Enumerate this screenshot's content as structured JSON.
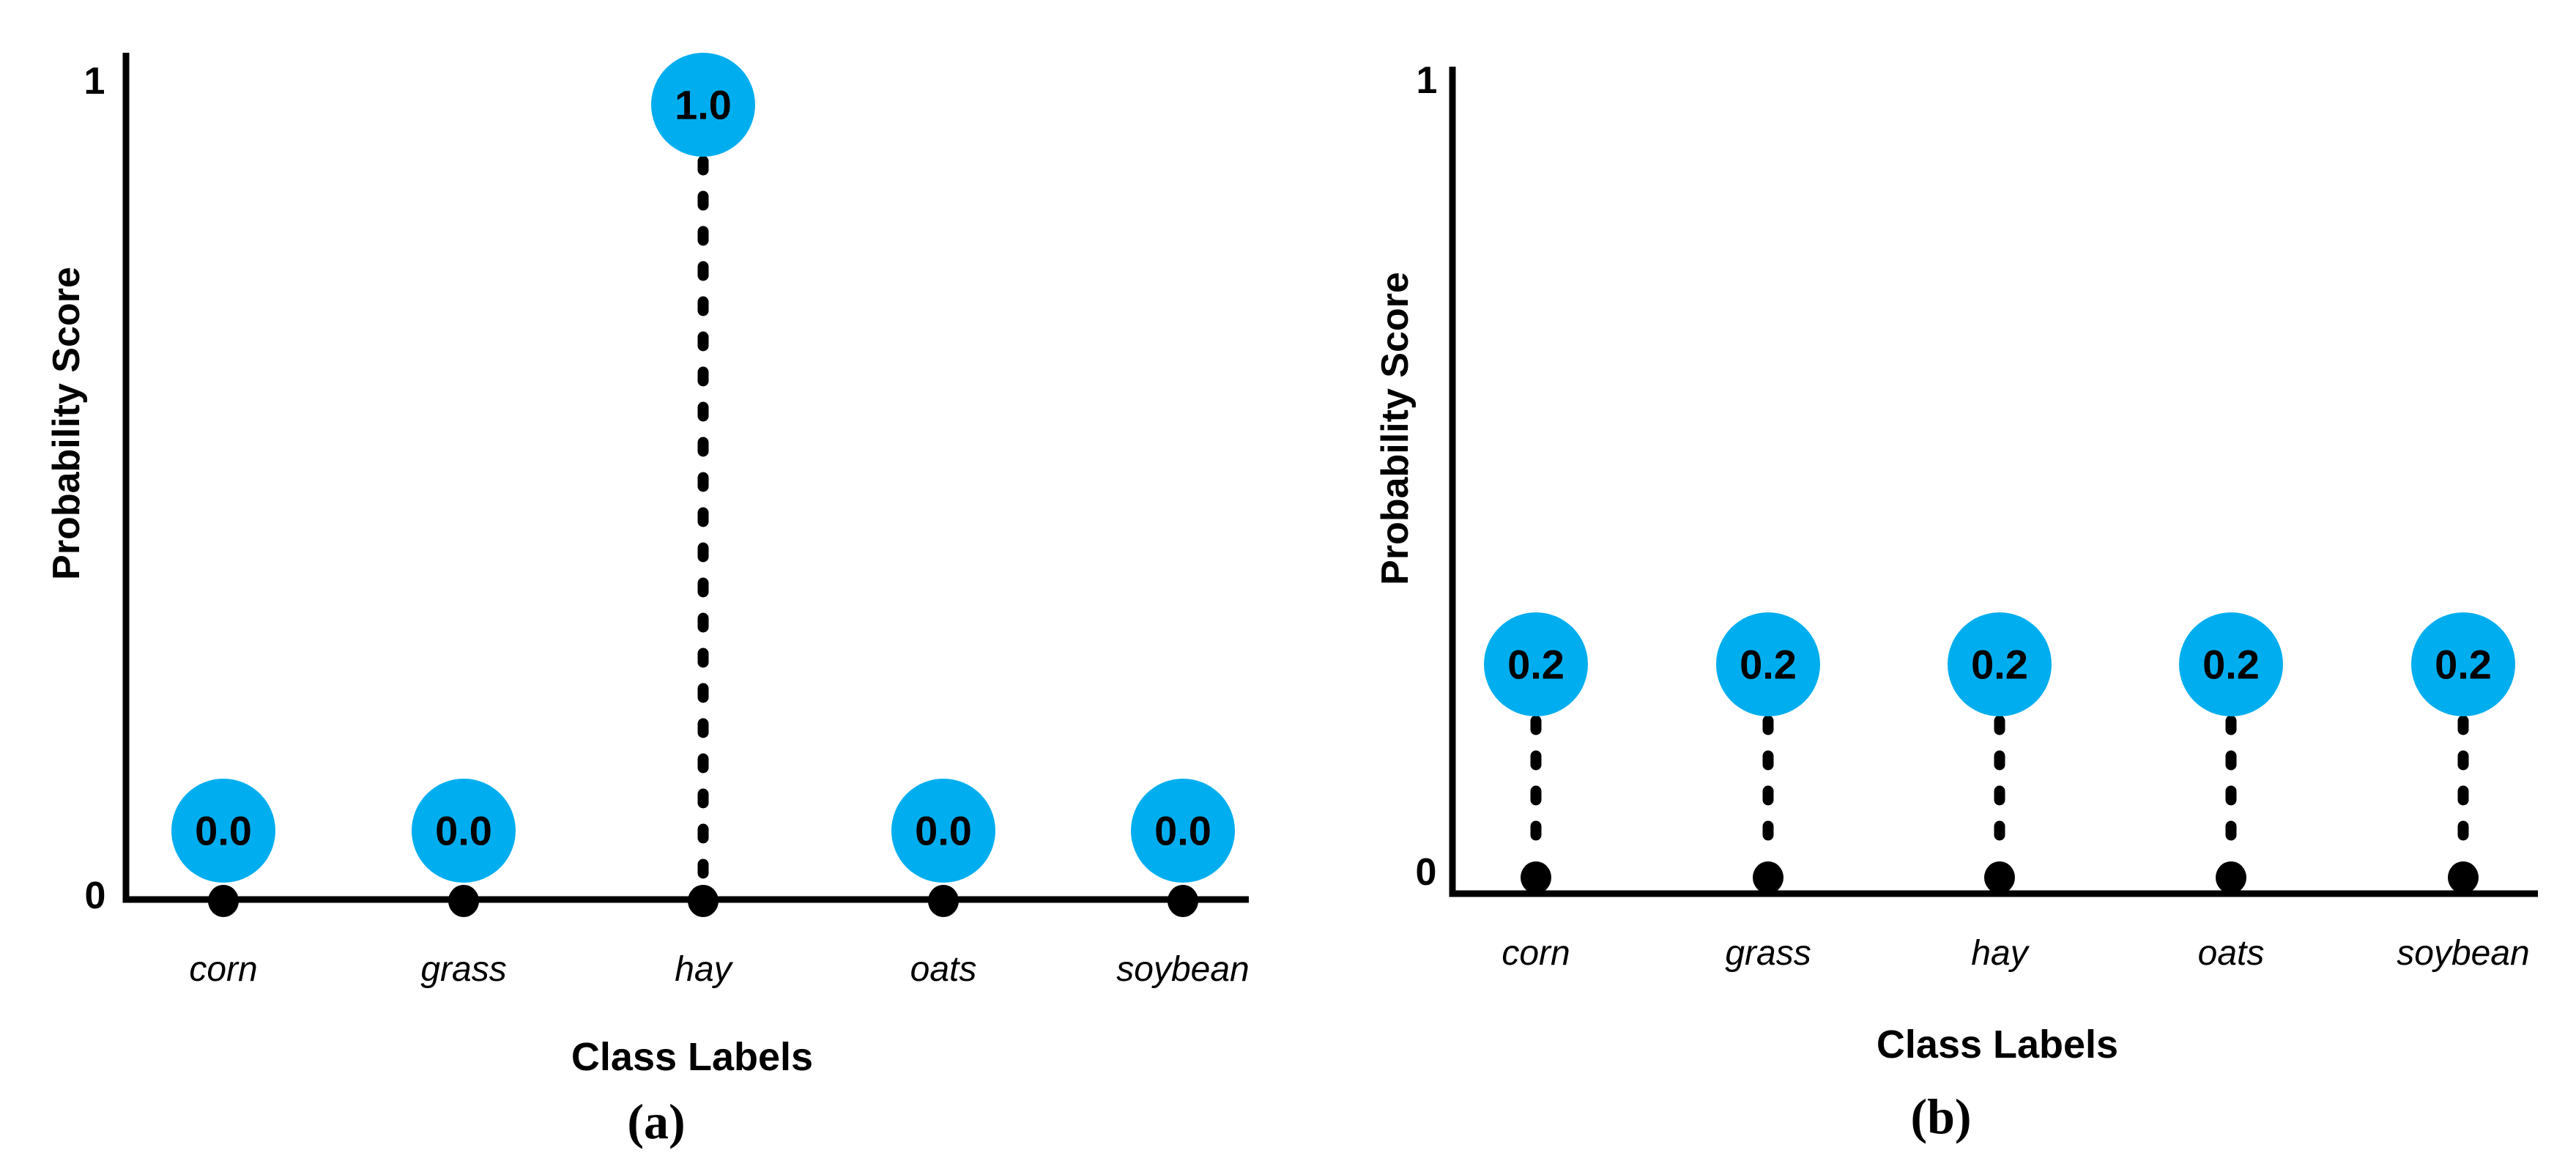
{
  "colors": {
    "bubble_fill": "#00AEEF",
    "ink": "#000000",
    "background": "#FFFFFF"
  },
  "chart_data": [
    {
      "type": "stem",
      "panel_label": "(a)",
      "xlabel": "Class Labels",
      "ylabel": "Probability Score",
      "categories": [
        "corn",
        "grass",
        "hay",
        "oats",
        "soybean"
      ],
      "values": [
        0.0,
        0.0,
        1.0,
        0.0,
        0.0
      ],
      "value_labels": [
        "0.0",
        "0.0",
        "1.0",
        "0.0",
        "0.0"
      ],
      "ylim": [
        0,
        1
      ],
      "y_tick_labels": [
        "1",
        "0"
      ],
      "grid": "off",
      "legend": "none",
      "marker_style": "filled circle with dashed stem",
      "marker_color": "#00AEEF"
    },
    {
      "type": "stem",
      "panel_label": "(b)",
      "xlabel": "Class Labels",
      "ylabel": "Probability Score",
      "categories": [
        "corn",
        "grass",
        "hay",
        "oats",
        "soybean"
      ],
      "values": [
        0.2,
        0.2,
        0.2,
        0.2,
        0.2
      ],
      "value_labels": [
        "0.2",
        "0.2",
        "0.2",
        "0.2",
        "0.2"
      ],
      "ylim": [
        0,
        1
      ],
      "y_tick_labels": [
        "1",
        "0"
      ],
      "grid": "off",
      "legend": "none",
      "marker_style": "filled circle with dashed stem",
      "marker_color": "#00AEEF"
    }
  ]
}
